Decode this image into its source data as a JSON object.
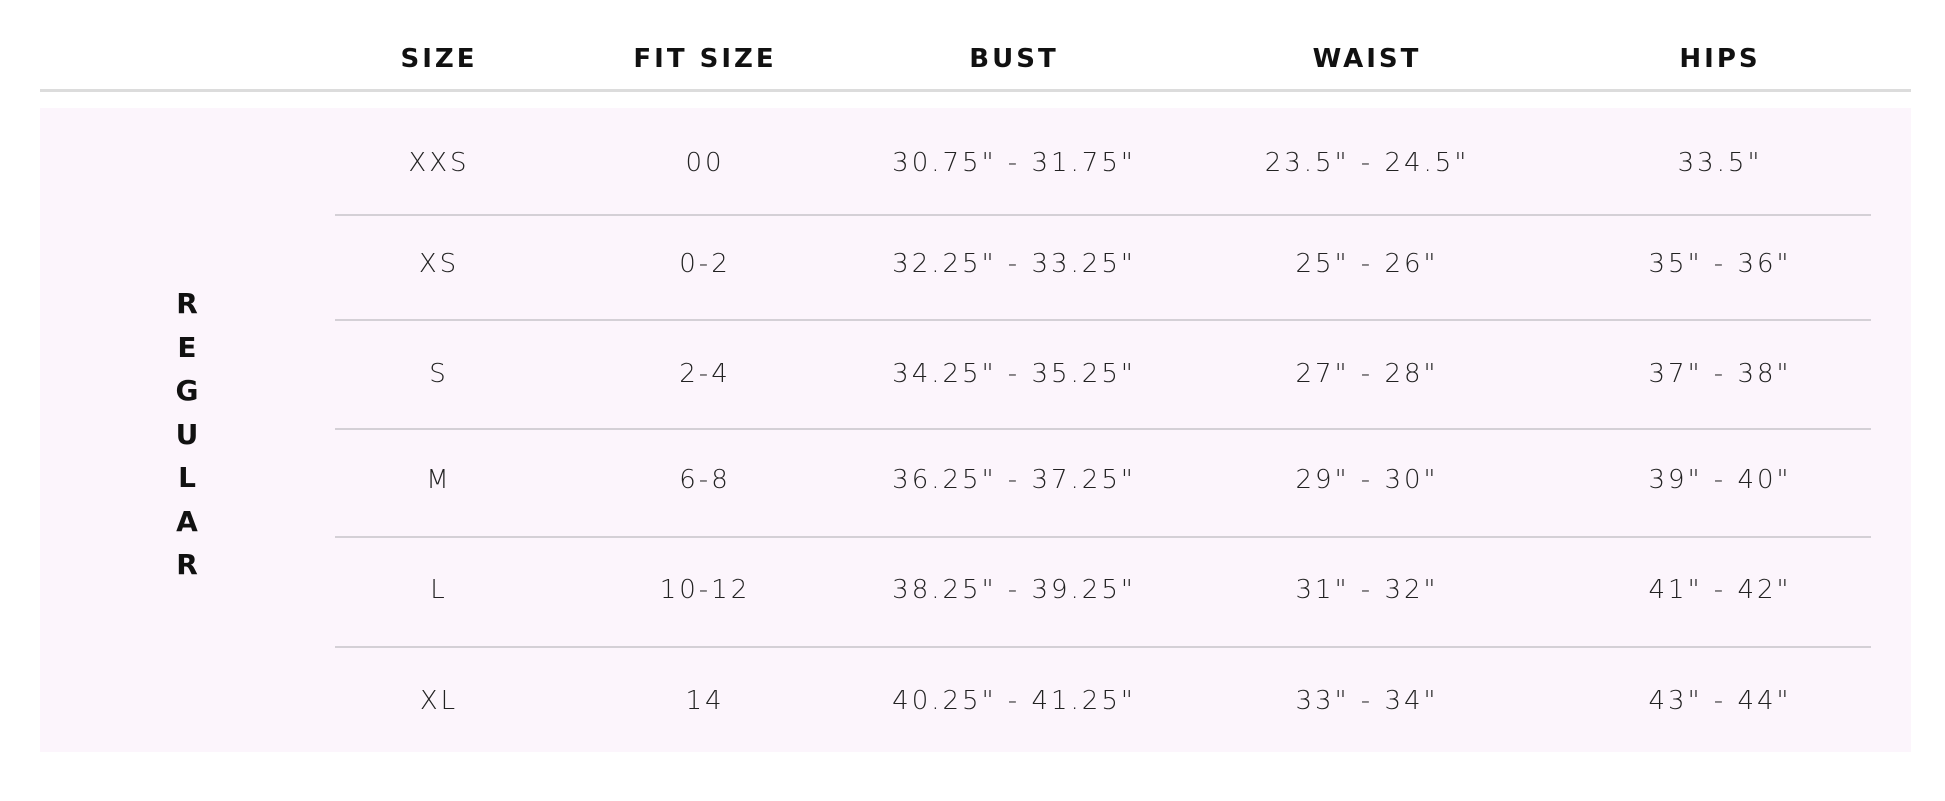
{
  "headers": [
    "SIZE",
    "FIT SIZE",
    "BUST",
    "WAIST",
    "HIPS"
  ],
  "group_label": "REGULAR",
  "rows": [
    [
      "XXS",
      "00",
      "30.75\" - 31.75\"",
      "23.5\" - 24.5\"",
      "33.5\""
    ],
    [
      "XS",
      "0-2",
      "32.25\" - 33.25\"",
      "25\" - 26\"",
      "35\" - 36\""
    ],
    [
      "S",
      "2-4",
      "34.25\" - 35.25\"",
      "27\" - 28\"",
      "37\" - 38\""
    ],
    [
      "M",
      "6-8",
      "36.25\" - 37.25\"",
      "29\" - 30\"",
      "39\" - 40\""
    ],
    [
      "L",
      "10-12",
      "38.25\" - 39.25\"",
      "31\" - 32\"",
      "41\" - 42\""
    ],
    [
      "XL",
      "14",
      "40.25\" - 41.25\"",
      "33\" - 34\"",
      "43\" - 44\""
    ]
  ],
  "colors": {
    "panel": "#fcf5fc",
    "divider": "#d4d0d6",
    "text": "#111111"
  }
}
